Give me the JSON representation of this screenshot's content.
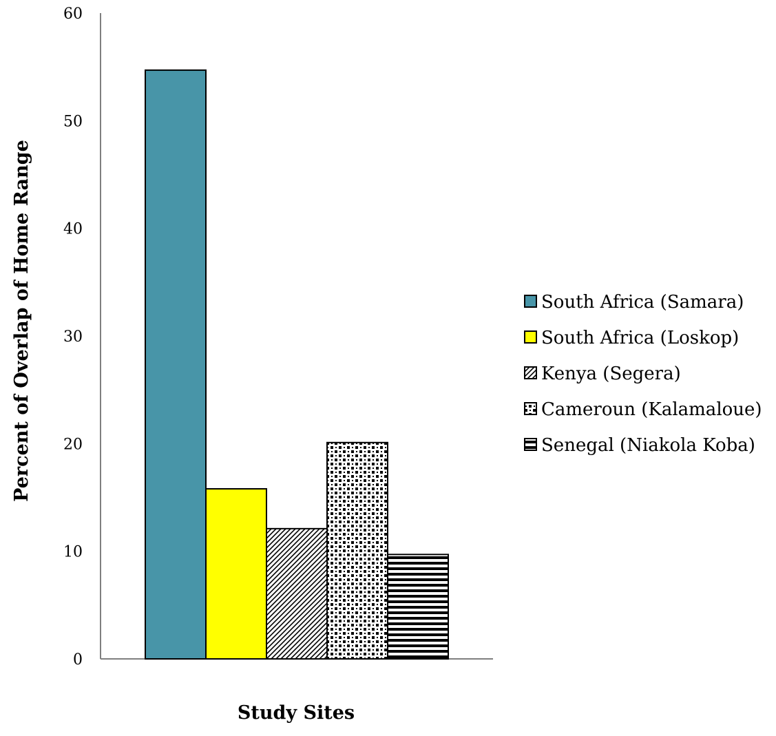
{
  "chart_data": {
    "type": "bar",
    "title": "",
    "xlabel": "Study Sites",
    "ylabel": "Percent of Overlap of Home Range",
    "ylim": [
      0,
      60
    ],
    "yticks": [
      "0",
      "10",
      "20",
      "30",
      "40",
      "50",
      "60"
    ],
    "grid": false,
    "legend_position": "right",
    "series": [
      {
        "name": "South Africa (Samara)",
        "value": 54.7,
        "color": "#4895a8",
        "pattern": "solid"
      },
      {
        "name": "South Africa (Loskop)",
        "value": 15.8,
        "color": "#ffff00",
        "pattern": "solid"
      },
      {
        "name": "Kenya (Segera)",
        "value": 12.1,
        "color": "#000000",
        "pattern": "diagonal-hatch"
      },
      {
        "name": "Cameroun (Kalamaloue)",
        "value": 20.1,
        "color": "#000000",
        "pattern": "checker-dots"
      },
      {
        "name": "Senegal (Niakola Koba)",
        "value": 9.7,
        "color": "#000000",
        "pattern": "horizontal-stripes"
      }
    ]
  }
}
